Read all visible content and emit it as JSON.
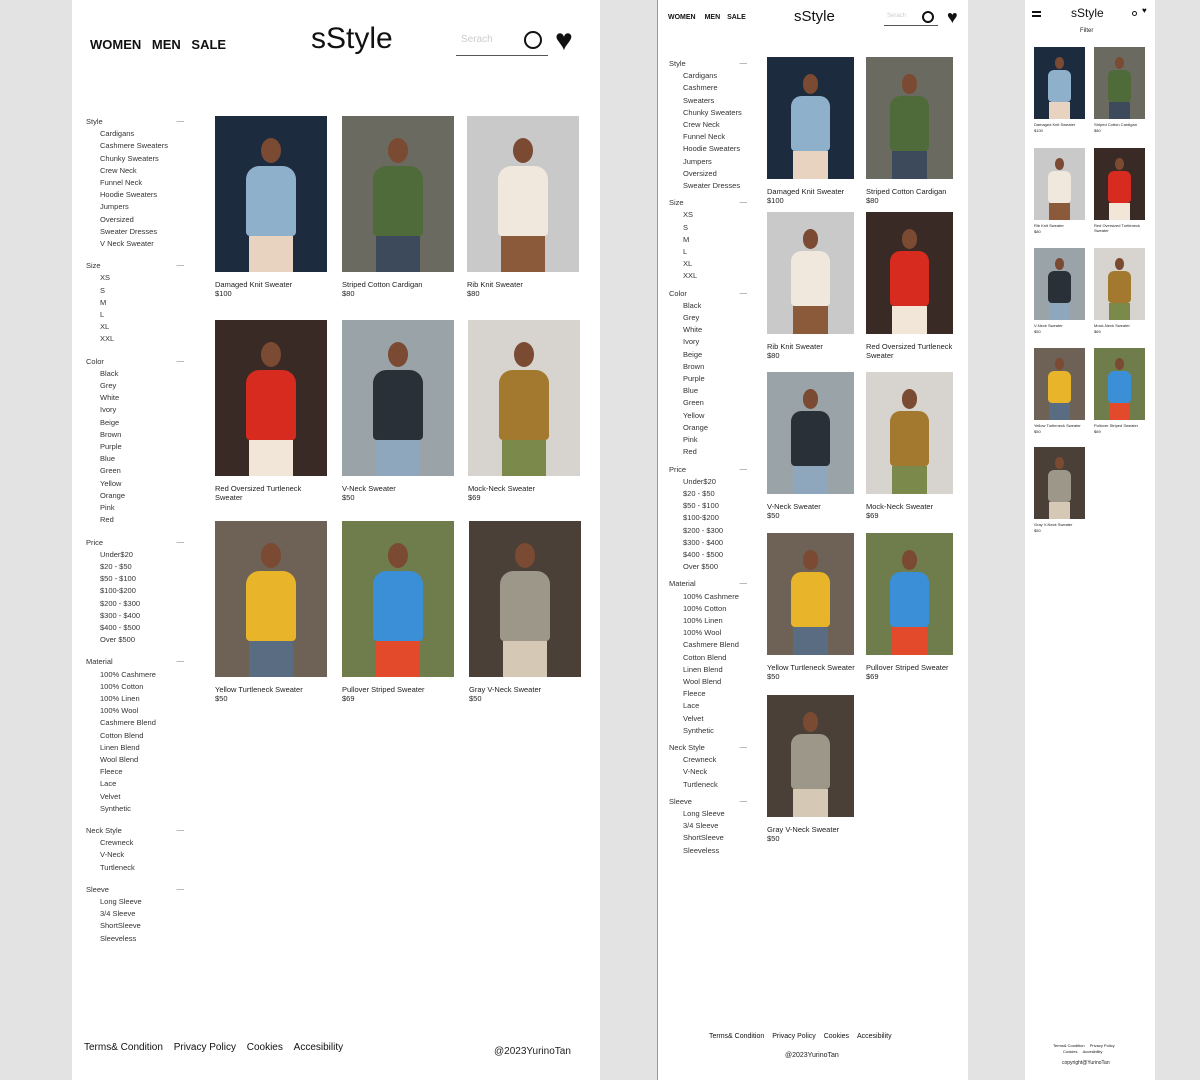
{
  "brand": "sStyle",
  "nav": [
    "WOMEN",
    "MEN",
    "SALE"
  ],
  "search_placeholder": "Serach",
  "filter_label": "Filter",
  "filters": [
    {
      "title": "Style",
      "options": [
        "Cardigans",
        "Cashmere Sweaters",
        "Chunky Sweaters",
        "Crew Neck",
        "Funnel Neck",
        "Hoodie Sweaters",
        "Jumpers",
        "Oversized",
        "Sweater Dresses",
        "V Neck Sweater"
      ]
    },
    {
      "title": "Size",
      "options": [
        "XS",
        "S",
        "M",
        "L",
        "XL",
        "XXL"
      ]
    },
    {
      "title": "Color",
      "options": [
        "Black",
        "Grey",
        "White",
        "Ivory",
        "Beige",
        "Brown",
        "Purple",
        "Blue",
        "Green",
        "Yellow",
        "Orange",
        "Pink",
        "Red"
      ]
    },
    {
      "title": "Price",
      "options": [
        "Under$20",
        "$20 - $50",
        "$50 - $100",
        "$100-$200",
        "$200 - $300",
        "$300 - $400",
        "$400 - $500",
        "Over $500"
      ]
    },
    {
      "title": "Material",
      "options": [
        "100% Cashmere",
        "100% Cotton",
        "100% Linen",
        "100% Wool",
        "Cashmere Blend",
        "Cotton Blend",
        "Linen Blend",
        "Wool Blend",
        "Fleece",
        "Lace",
        "Velvet",
        "Synthetic"
      ]
    },
    {
      "title": "Neck Style",
      "options": [
        "Crewneck",
        "V-Neck",
        "Turtleneck"
      ]
    },
    {
      "title": "Sleeve",
      "options": [
        "Long Sleeve",
        "3/4 Sleeve",
        "ShortSleeve",
        "Sleeveless"
      ]
    }
  ],
  "tablet_style_last": "Sweater Dresses",
  "products": [
    {
      "name": "Damaged Knit Sweater",
      "price": "$100",
      "colors": [
        "#1c2b3d",
        "#8fb0cb",
        "#e8d2c0"
      ]
    },
    {
      "name": "Striped Cotton Cardigan",
      "price": "$80",
      "colors": [
        "#6b6a61",
        "#4f6b3a",
        "#3d4a5c"
      ]
    },
    {
      "name": "Rib Knit Sweater",
      "price": "$80",
      "colors": [
        "#c9c9c9",
        "#f0e8dc",
        "#8a5a3a"
      ]
    },
    {
      "name": "Red Oversized Turtleneck Sweater",
      "price": "",
      "colors": [
        "#3a2a26",
        "#d62b1e",
        "#f1e6d8"
      ]
    },
    {
      "name": "V-Neck Sweater",
      "price": "$50",
      "colors": [
        "#9aa3a8",
        "#2a3038",
        "#8fa7bd"
      ]
    },
    {
      "name": "Mock-Neck Sweater",
      "price": "$69",
      "colors": [
        "#d7d4cf",
        "#a3782f",
        "#7b8a4a"
      ]
    },
    {
      "name": "Yellow Turtleneck Sweater",
      "price": "$50",
      "colors": [
        "#6e6156",
        "#e8b42a",
        "#5a6c82"
      ]
    },
    {
      "name": "Pullover Striped Sweater",
      "price": "$69",
      "colors": [
        "#6f7d4d",
        "#3a8fd6",
        "#e24a2b"
      ]
    },
    {
      "name": "Gray V-Neck Sweater",
      "price": "$50",
      "colors": [
        "#4a4038",
        "#9c9789",
        "#d5c9b6"
      ]
    }
  ],
  "footer": {
    "links": [
      "Terms& Condition",
      "Privacy Policy",
      "Cookies",
      "Accesibility"
    ],
    "copyright": "@2023YurinoTan",
    "mobile_copyright": "copyright@YurinoTan"
  }
}
